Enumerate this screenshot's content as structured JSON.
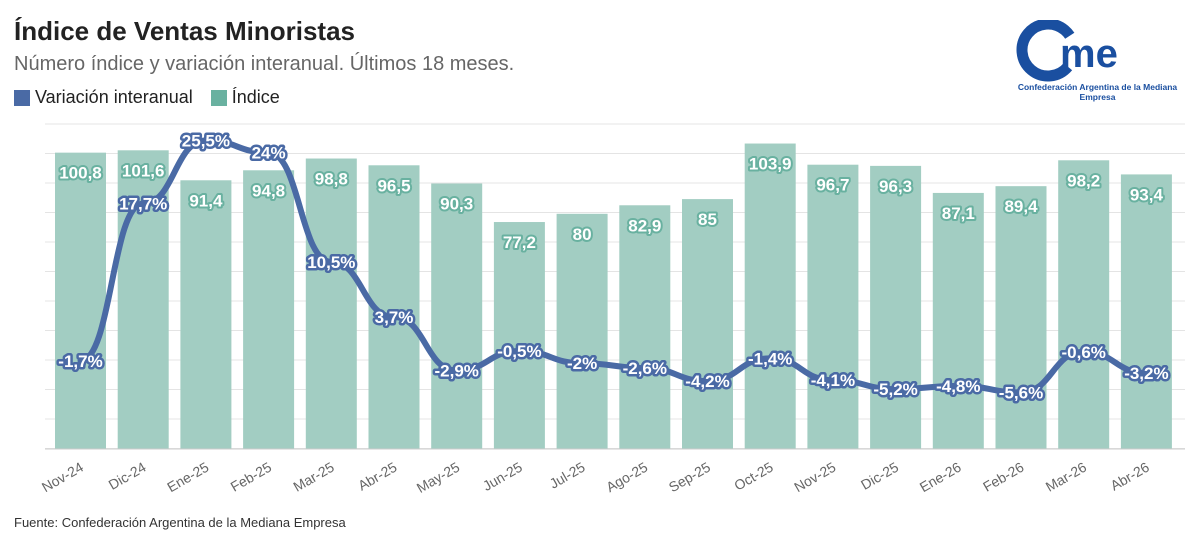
{
  "header": {
    "title": "Índice de Ventas Minoristas",
    "subtitle": "Número índice y variación interanual. Últimos 18 meses."
  },
  "legend": {
    "items": [
      {
        "label": "Variación interanual",
        "color": "#4a6aa5"
      },
      {
        "label": "Índice",
        "color": "#69b1a0"
      }
    ]
  },
  "logo": {
    "text": "Confederación Argentina de la Mediana Empresa",
    "color": "#1a4fa0"
  },
  "footer": {
    "source": "Fuente: Confederación Argentina de la Mediana Empresa"
  },
  "chart_data": {
    "type": "bar",
    "categories": [
      "Nov-24",
      "Dic-24",
      "Ene-25",
      "Feb-25",
      "Mar-25",
      "Abr-25",
      "May-25",
      "Jun-25",
      "Jul-25",
      "Ago-25",
      "Sep-25",
      "Oct-25",
      "Nov-25",
      "Dic-25",
      "Ene-26",
      "Feb-26",
      "Mar-26",
      "Abr-26"
    ],
    "series": [
      {
        "name": "Índice",
        "type": "bar",
        "color": "#a2cdc2",
        "label_color": "#69b1a0",
        "values": [
          100.8,
          101.6,
          91.4,
          94.8,
          98.8,
          96.5,
          90.3,
          77.2,
          80,
          82.9,
          85,
          103.9,
          96.7,
          96.3,
          87.1,
          89.4,
          98.2,
          93.4
        ],
        "labels": [
          "100,8",
          "101,6",
          "91,4",
          "94,8",
          "98,8",
          "96,5",
          "90,3",
          "77,2",
          "80",
          "82,9",
          "85",
          "103,9",
          "96,7",
          "96,3",
          "87,1",
          "89,4",
          "98,2",
          "93,4"
        ]
      },
      {
        "name": "Variación interanual",
        "type": "line",
        "color": "#4a6aa5",
        "values": [
          -1.7,
          17.7,
          25.5,
          24,
          10.5,
          3.7,
          -2.9,
          -0.5,
          -2,
          -2.6,
          -4.2,
          -1.4,
          -4.1,
          -5.2,
          -4.8,
          -5.6,
          -0.6,
          -3.2
        ],
        "labels": [
          "-1,7%",
          "17,7%",
          "25,5%",
          "24%",
          "10,5%",
          "3,7%",
          "-2,9%",
          "-0,5%",
          "-2%",
          "-2,6%",
          "-4,2%",
          "-1,4%",
          "-4,1%",
          "-5,2%",
          "-4,8%",
          "-5,6%",
          "-0,6%",
          "-3,2%"
        ]
      }
    ],
    "grid": true
  }
}
